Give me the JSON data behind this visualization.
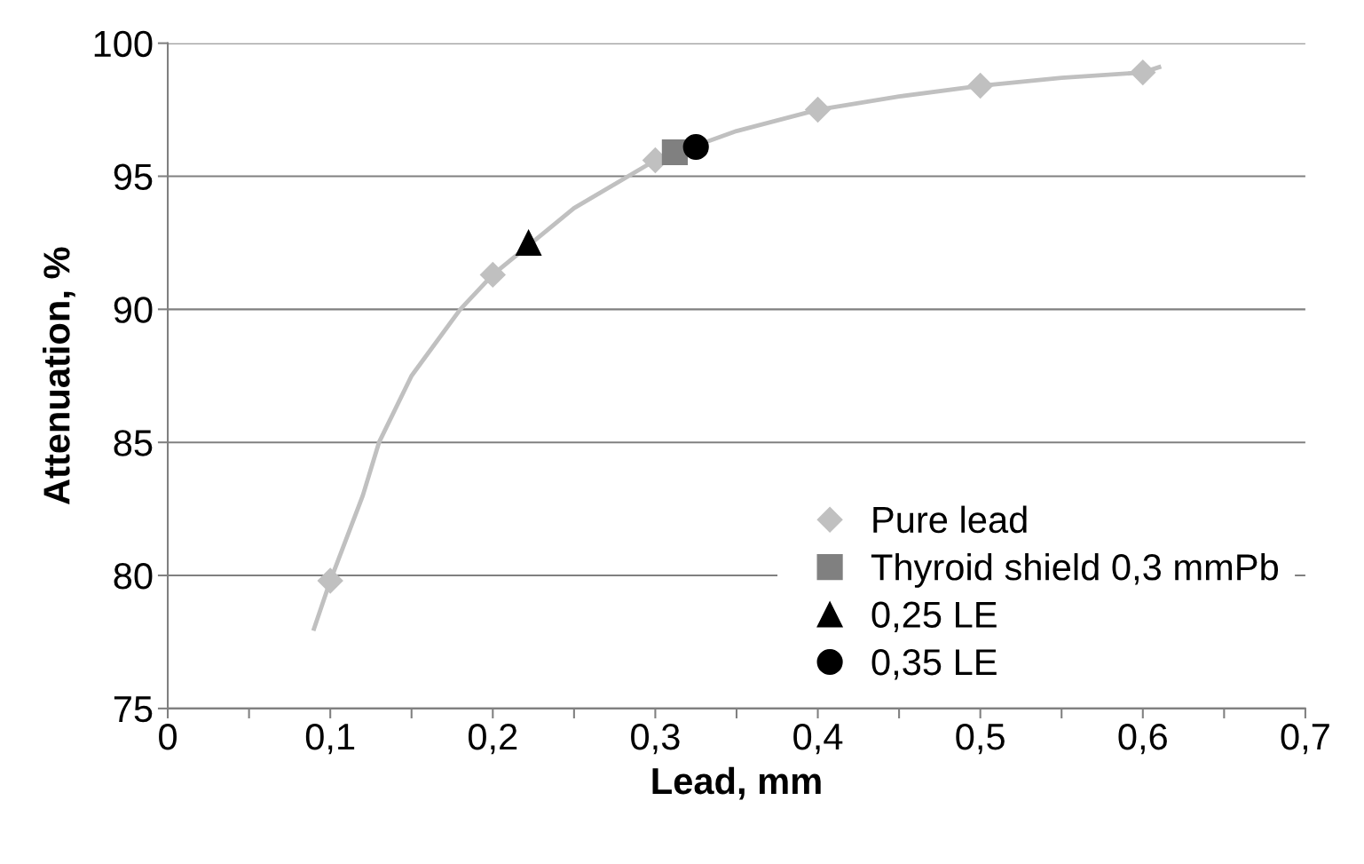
{
  "chart_data": {
    "type": "scatter",
    "xlabel": "Lead, mm",
    "ylabel": "Attenuation, %",
    "xlim": [
      0,
      0.7
    ],
    "xticks": [
      0,
      {
        "value": 0.05,
        "label": null
      },
      {
        "value": 0.1,
        "label": "0,1"
      },
      {
        "value": 0.15,
        "label": null
      },
      {
        "value": 0.2,
        "label": "0,2"
      },
      {
        "value": 0.25,
        "label": null
      },
      {
        "value": 0.3,
        "label": "0,3"
      },
      {
        "value": 0.35,
        "label": null
      },
      {
        "value": 0.4,
        "label": "0,4"
      },
      {
        "value": 0.45,
        "label": null
      },
      {
        "value": 0.5,
        "label": "0,5"
      },
      {
        "value": 0.55,
        "label": null
      },
      {
        "value": 0.6,
        "label": "0,6"
      },
      {
        "value": 0.65,
        "label": null
      },
      {
        "value": 0.7,
        "label": "0,7"
      }
    ],
    "ylim": [
      75,
      100
    ],
    "yticks": [
      75,
      80,
      85,
      90,
      95,
      100
    ],
    "grid": "y",
    "legend": "bottom right",
    "series": [
      {
        "type": "line",
        "color": "#c0c0c0",
        "marker": "none",
        "x": [
          0.09,
          0.1,
          0.12,
          0.13,
          0.15,
          0.18,
          0.2,
          0.25,
          0.3,
          0.35,
          0.4,
          0.45,
          0.5,
          0.55,
          0.6,
          0.61
        ],
        "values": [
          78,
          79.8,
          83,
          85,
          87.5,
          90,
          91.3,
          93.8,
          95.6,
          96.7,
          97.5,
          98.0,
          98.4,
          98.7,
          98.9,
          99.1
        ]
      },
      {
        "name": "Pure lead",
        "color": "#c0c0c0",
        "marker": "diamond",
        "x": [
          0.1,
          0.2,
          0.3,
          0.4,
          0.5,
          0.6
        ],
        "values": [
          79.8,
          91.3,
          95.6,
          97.5,
          98.4,
          98.9
        ]
      },
      {
        "name": "Thyroid shield 0,3 mmPb",
        "color": "#808080",
        "marker": "square",
        "x": [
          0.312
        ],
        "values": [
          95.9
        ]
      },
      {
        "name": "0,25 LE",
        "color": "#000000",
        "marker": "triangle",
        "x": [
          0.222
        ],
        "values": [
          92.5
        ]
      },
      {
        "name": "0,35 LE",
        "color": "#000000",
        "marker": "circle",
        "x": [
          0.325
        ],
        "values": [
          96.1
        ]
      }
    ]
  }
}
